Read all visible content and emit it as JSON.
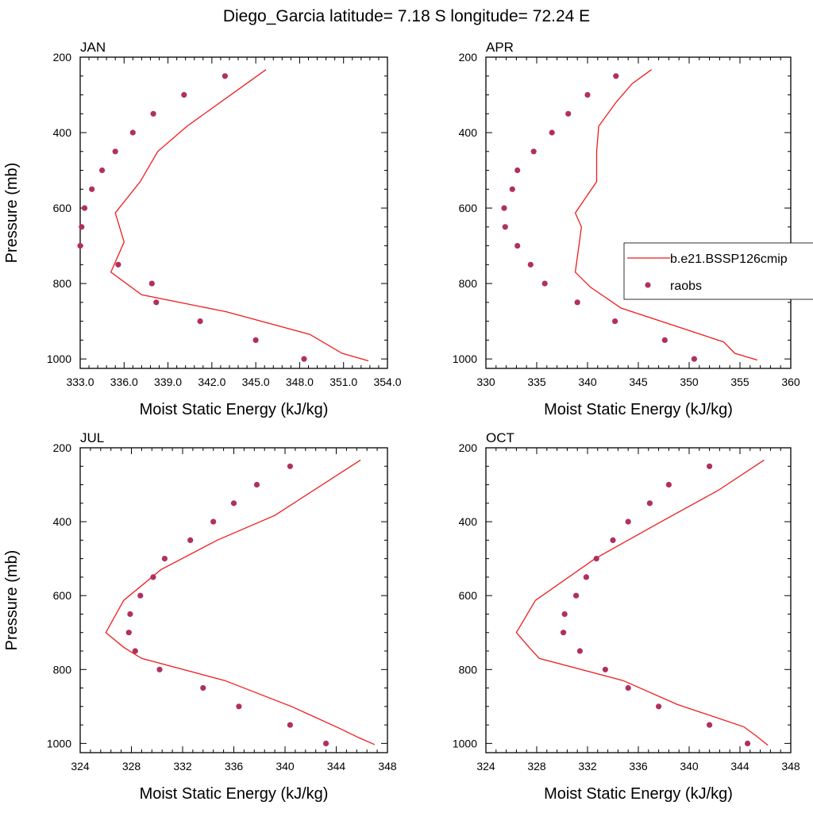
{
  "title": "Diego_Garcia  latitude= 7.18 S longitude= 72.24 E",
  "colors": {
    "model": "#ee1c1c",
    "obs": "#b03060",
    "axis": "#000000"
  },
  "chart_data": [
    {
      "type": "line",
      "panel_label": "JAN",
      "xlabel": "Moist Static Energy (kJ/kg)",
      "ylabel": "Pressure (mb)",
      "xlim": [
        333,
        354
      ],
      "ylim": [
        200,
        1025
      ],
      "y_reversed": true,
      "xticks": [
        "333.0",
        "336.0",
        "339.0",
        "342.0",
        "345.0",
        "348.0",
        "351.0",
        "354.0"
      ],
      "yticks": [
        "200",
        "400",
        "600",
        "800",
        "1000"
      ],
      "series": [
        {
          "name": "b.e21.BSSP126cmip",
          "kind": "line",
          "x": [
            345.7,
            340.3,
            338.3,
            337.1,
            335.4,
            336.0,
            335.1,
            337.2,
            343.0,
            348.7,
            350.9,
            352.7
          ],
          "y": [
            233,
            383,
            450,
            530,
            613,
            690,
            770,
            830,
            875,
            935,
            985,
            1005
          ]
        },
        {
          "name": "raobs",
          "kind": "points",
          "x": [
            342.9,
            340.1,
            338.0,
            336.6,
            335.4,
            334.5,
            333.8,
            333.3,
            333.1,
            333.0,
            335.6,
            337.9,
            338.2,
            341.2,
            345.0,
            348.3
          ],
          "y": [
            250,
            300,
            350,
            400,
            450,
            500,
            550,
            600,
            650,
            700,
            750,
            800,
            850,
            900,
            950,
            1000
          ]
        }
      ]
    },
    {
      "type": "line",
      "panel_label": "APR",
      "xlabel": "Moist Static Energy (kJ/kg)",
      "ylabel": "",
      "xlim": [
        330,
        360
      ],
      "ylim": [
        200,
        1025
      ],
      "y_reversed": true,
      "xticks": [
        "330",
        "335",
        "340",
        "345",
        "350",
        "355",
        "360"
      ],
      "yticks": [
        "200",
        "400",
        "600",
        "800",
        "1000"
      ],
      "legend": {
        "position": "right",
        "entries": [
          "b.e21.BSSP126cmip",
          "raobs"
        ]
      },
      "series": [
        {
          "name": "b.e21.BSSP126cmip",
          "kind": "line",
          "x": [
            346.3,
            344.4,
            342.8,
            341.1,
            340.9,
            340.9,
            338.8,
            339.4,
            339.2,
            338.8,
            340.3,
            343.3,
            353.4,
            354.5,
            356.7
          ],
          "y": [
            233,
            270,
            320,
            383,
            450,
            530,
            613,
            650,
            690,
            770,
            810,
            865,
            955,
            985,
            1003
          ]
        },
        {
          "name": "raobs",
          "kind": "points",
          "x": [
            342.8,
            340.0,
            338.1,
            336.5,
            334.7,
            333.1,
            332.6,
            331.8,
            331.9,
            333.1,
            334.4,
            335.8,
            339.0,
            342.7,
            347.6,
            350.5
          ],
          "y": [
            250,
            300,
            350,
            400,
            450,
            500,
            550,
            600,
            650,
            700,
            750,
            800,
            850,
            900,
            950,
            1000
          ]
        }
      ]
    },
    {
      "type": "line",
      "panel_label": "JUL",
      "xlabel": "Moist Static Energy (kJ/kg)",
      "ylabel": "Pressure (mb)",
      "xlim": [
        324,
        348
      ],
      "ylim": [
        200,
        1025
      ],
      "y_reversed": true,
      "xticks": [
        "324",
        "328",
        "332",
        "336",
        "340",
        "344",
        "348"
      ],
      "yticks": [
        "200",
        "400",
        "600",
        "800",
        "1000"
      ],
      "series": [
        {
          "name": "b.e21.BSSP126cmip",
          "kind": "line",
          "x": [
            345.9,
            339.2,
            334.7,
            330.3,
            327.4,
            326.0,
            327.4,
            328.8,
            335.3,
            340.5,
            344.3,
            345.8,
            347.0
          ],
          "y": [
            233,
            383,
            450,
            530,
            613,
            700,
            740,
            770,
            830,
            900,
            960,
            985,
            1003
          ]
        },
        {
          "name": "raobs",
          "kind": "points",
          "x": [
            340.4,
            337.8,
            336.0,
            334.4,
            332.6,
            330.6,
            329.7,
            328.7,
            327.9,
            327.8,
            328.3,
            330.2,
            333.6,
            336.4,
            340.4,
            343.2
          ],
          "y": [
            250,
            300,
            350,
            400,
            450,
            500,
            550,
            600,
            650,
            700,
            750,
            800,
            850,
            900,
            950,
            1000
          ]
        }
      ]
    },
    {
      "type": "line",
      "panel_label": "OCT",
      "xlabel": "Moist Static Energy (kJ/kg)",
      "ylabel": "",
      "xlim": [
        324,
        348
      ],
      "ylim": [
        200,
        1025
      ],
      "y_reversed": true,
      "xticks": [
        "324",
        "328",
        "332",
        "336",
        "340",
        "344",
        "348"
      ],
      "yticks": [
        "200",
        "400",
        "600",
        "800",
        "1000"
      ],
      "series": [
        {
          "name": "b.e21.BSSP126cmip",
          "kind": "line",
          "x": [
            345.9,
            342.3,
            337.8,
            332.6,
            327.9,
            326.4,
            327.4,
            328.2,
            334.8,
            339.1,
            344.3,
            345.3,
            346.2
          ],
          "y": [
            233,
            315,
            400,
            500,
            613,
            700,
            740,
            770,
            830,
            895,
            955,
            980,
            1005
          ]
        },
        {
          "name": "raobs",
          "kind": "points",
          "x": [
            341.6,
            338.4,
            336.9,
            335.2,
            334.0,
            332.7,
            331.9,
            331.1,
            330.2,
            330.1,
            331.4,
            333.4,
            335.2,
            337.6,
            341.6,
            344.6
          ],
          "y": [
            250,
            300,
            350,
            400,
            450,
            500,
            550,
            600,
            650,
            700,
            750,
            800,
            850,
            900,
            950,
            1000
          ]
        }
      ]
    }
  ]
}
